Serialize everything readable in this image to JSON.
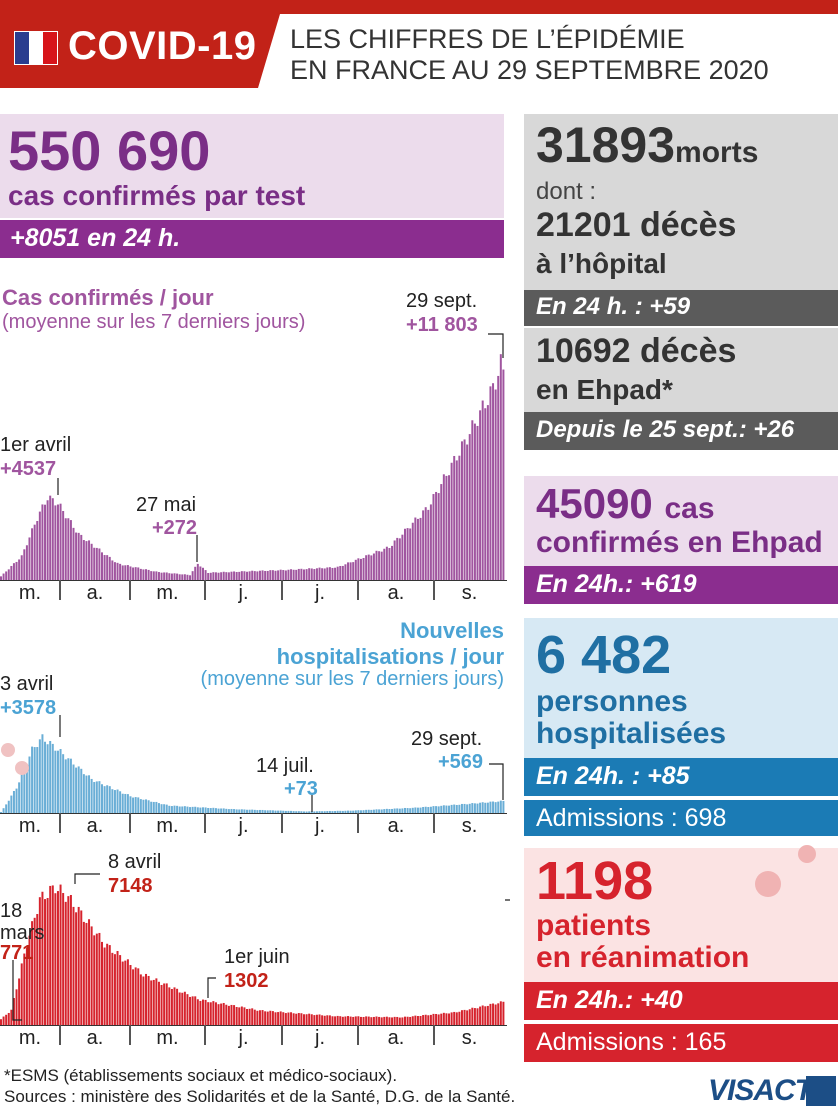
{
  "header": {
    "title": "COVID-19",
    "subtitle_line1": "LES CHIFFRES DE L’ÉPIDÉMIE",
    "subtitle_line2": "EN FRANCE AU 29 SEPTEMBRE 2020",
    "flag_colors": [
      "#2a3d8f",
      "#ffffff",
      "#d7141a"
    ],
    "brand_red": "#c22218"
  },
  "cases": {
    "number": "550 690",
    "label": "cas confirmés par test",
    "delta": "+8051 en 24 h.",
    "color": "#8b2d8f"
  },
  "deaths": {
    "total": "31893",
    "total_unit": "morts",
    "dont": "dont :",
    "hospital": "21201",
    "hospital_unit": "décès",
    "hospital_line2": "à l’hôpital",
    "hospital_delta": "En 24 h. : +59",
    "ehpad": "10692",
    "ehpad_unit": "décès",
    "ehpad_line2": "en Ehpad*",
    "ehpad_delta": "Depuis le 25 sept.: +26"
  },
  "ehpad_cases": {
    "number": "45090",
    "unit": "cas",
    "line2": "confirmés en Ehpad",
    "delta": "En 24h.: +619"
  },
  "hospitalized": {
    "number": "6 482",
    "line1": "personnes",
    "line2": "hospitalisées",
    "delta": "En 24h. : +85",
    "admissions": "Admissions : 698"
  },
  "icu": {
    "number": "1198",
    "line1": "patients",
    "line2": "en réanimation",
    "delta": "En 24h.: +40",
    "admissions": "Admissions : 165"
  },
  "footer": {
    "note": "*ESMS (établissements sociaux et médico-sociaux).",
    "sources": "Sources : ministère des Solidarités et de la Santé, D.G. de la Santé.",
    "brand": "VISACTU"
  },
  "chart_data": [
    {
      "type": "bar",
      "title": "Cas confirmés / jour",
      "subtitle": "(moyenne sur les 7 derniers jours)",
      "color": "#a0559f",
      "month_labels": [
        "m.",
        "a.",
        "m.",
        "j.",
        "j.",
        "a.",
        "s."
      ],
      "ylim": [
        0,
        12500
      ],
      "keypoints": [
        {
          "day": 0,
          "value": 200
        },
        {
          "day": 8,
          "value": 1300
        },
        {
          "day": 14,
          "value": 3400
        },
        {
          "day": 18,
          "value": 4537
        },
        {
          "day": 22,
          "value": 4200
        },
        {
          "day": 30,
          "value": 2500
        },
        {
          "day": 45,
          "value": 900
        },
        {
          "day": 60,
          "value": 450
        },
        {
          "day": 73,
          "value": 272
        },
        {
          "day": 76,
          "value": 900
        },
        {
          "day": 80,
          "value": 400
        },
        {
          "day": 110,
          "value": 550
        },
        {
          "day": 130,
          "value": 700
        },
        {
          "day": 150,
          "value": 1800
        },
        {
          "day": 165,
          "value": 4000
        },
        {
          "day": 180,
          "value": 7800
        },
        {
          "day": 190,
          "value": 10500
        },
        {
          "day": 193,
          "value": 11803
        },
        {
          "day": 194,
          "value": 11500
        }
      ],
      "annotations": [
        {
          "label": "1er avril",
          "value": "+4537"
        },
        {
          "label": "27 mai",
          "value": "+272"
        },
        {
          "label": "29 sept.",
          "value": "+11 803"
        }
      ]
    },
    {
      "type": "bar",
      "title_line1": "Nouvelles",
      "title_line2": "hospitalisations / jour",
      "subtitle": "(moyenne sur les 7 derniers jours)",
      "color": "#6aaed6",
      "month_labels": [
        "m.",
        "a.",
        "m.",
        "j.",
        "j.",
        "a.",
        "s."
      ],
      "ylim": [
        0,
        3700
      ],
      "keypoints": [
        {
          "day": 0,
          "value": 20
        },
        {
          "day": 6,
          "value": 1200
        },
        {
          "day": 12,
          "value": 3000
        },
        {
          "day": 16,
          "value": 3578
        },
        {
          "day": 22,
          "value": 3000
        },
        {
          "day": 35,
          "value": 1600
        },
        {
          "day": 50,
          "value": 800
        },
        {
          "day": 65,
          "value": 350
        },
        {
          "day": 90,
          "value": 180
        },
        {
          "day": 118,
          "value": 73
        },
        {
          "day": 135,
          "value": 110
        },
        {
          "day": 160,
          "value": 250
        },
        {
          "day": 180,
          "value": 430
        },
        {
          "day": 194,
          "value": 569
        }
      ],
      "annotations": [
        {
          "label": "3 avril",
          "value": "+3578"
        },
        {
          "label": "14 juil.",
          "value": "+73"
        },
        {
          "label": "29 sept.",
          "value": "+569"
        }
      ]
    },
    {
      "type": "bar",
      "color": "#d6232d",
      "month_labels": [
        "m.",
        "a.",
        "m.",
        "j.",
        "j.",
        "a.",
        "s."
      ],
      "ylim": [
        0,
        7300
      ],
      "keypoints": [
        {
          "day": 0,
          "value": 300
        },
        {
          "day": 4,
          "value": 771
        },
        {
          "day": 10,
          "value": 4200
        },
        {
          "day": 15,
          "value": 6500
        },
        {
          "day": 21,
          "value": 7148
        },
        {
          "day": 26,
          "value": 6600
        },
        {
          "day": 40,
          "value": 4200
        },
        {
          "day": 55,
          "value": 2600
        },
        {
          "day": 70,
          "value": 1700
        },
        {
          "day": 77,
          "value": 1302
        },
        {
          "day": 100,
          "value": 750
        },
        {
          "day": 130,
          "value": 450
        },
        {
          "day": 155,
          "value": 400
        },
        {
          "day": 175,
          "value": 650
        },
        {
          "day": 194,
          "value": 1198
        }
      ],
      "annotations": [
        {
          "label_line1": "18",
          "label_line2": "mars",
          "value": "771"
        },
        {
          "label": "8 avril",
          "value": "7148"
        },
        {
          "label": "1er juin",
          "value": "1302"
        }
      ]
    }
  ]
}
